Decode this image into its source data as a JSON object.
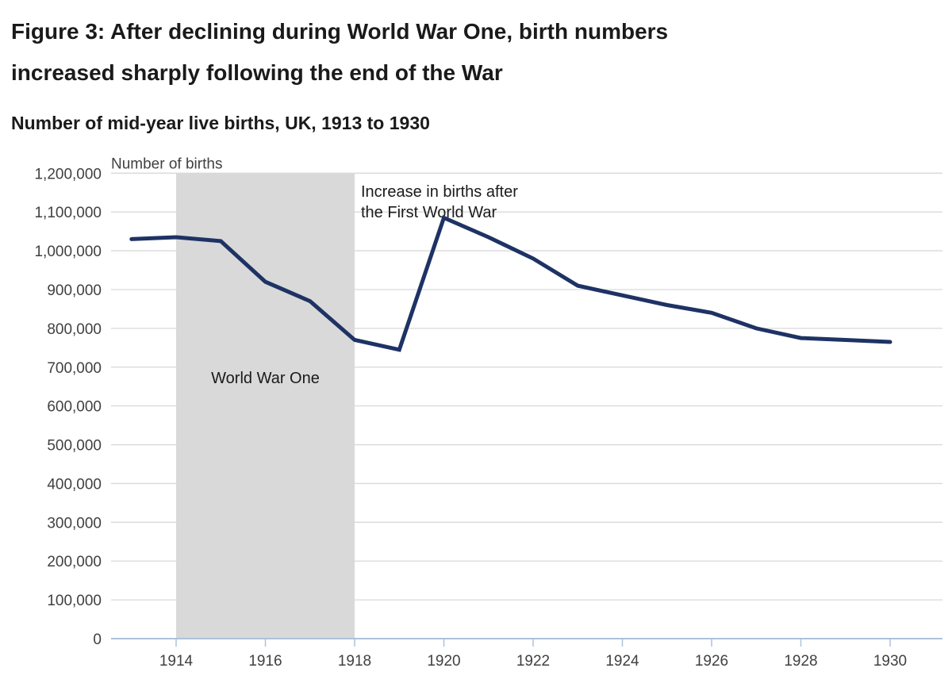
{
  "header": {
    "title_line1": "Figure 3: After declining during World War One, birth numbers",
    "title_line2": "increased sharply following the end of the War",
    "subtitle": "Number of mid-year live births, UK, 1913 to 1930"
  },
  "chart_data": {
    "type": "line",
    "title": "Figure 3: After declining during World War One, birth numbers increased sharply following the end of the War",
    "subtitle": "Number of mid-year live births, UK, 1913 to 1930",
    "axis_title": "Number of births",
    "series_name": "Number of births",
    "x": [
      1913,
      1914,
      1915,
      1916,
      1917,
      1918,
      1919,
      1920,
      1921,
      1922,
      1923,
      1924,
      1925,
      1926,
      1927,
      1928,
      1929,
      1930
    ],
    "values": [
      1030000,
      1035000,
      1025000,
      920000,
      870000,
      770000,
      745000,
      1085000,
      1035000,
      980000,
      910000,
      885000,
      860000,
      840000,
      800000,
      775000,
      770000,
      765000
    ],
    "x_ticks": [
      1914,
      1916,
      1918,
      1920,
      1922,
      1924,
      1926,
      1928,
      1930
    ],
    "y_ticks": [
      0,
      100000,
      200000,
      300000,
      400000,
      500000,
      600000,
      700000,
      800000,
      900000,
      1000000,
      1100000,
      1200000
    ],
    "ylim": [
      0,
      1200000
    ],
    "grid": "horizontal",
    "legend": "none",
    "annotations": {
      "war_band": {
        "label": "World War One",
        "x_start": 1914,
        "x_end": 1918
      },
      "note_line1": "Increase in births after",
      "note_line2": "the First World War"
    },
    "colors": {
      "line": "#1e3264",
      "band": "#d9d9d9",
      "grid": "#d9d9d9",
      "axis": "#aec1da",
      "tick_text": "#414042",
      "label_text": "#1a1a1a"
    }
  }
}
